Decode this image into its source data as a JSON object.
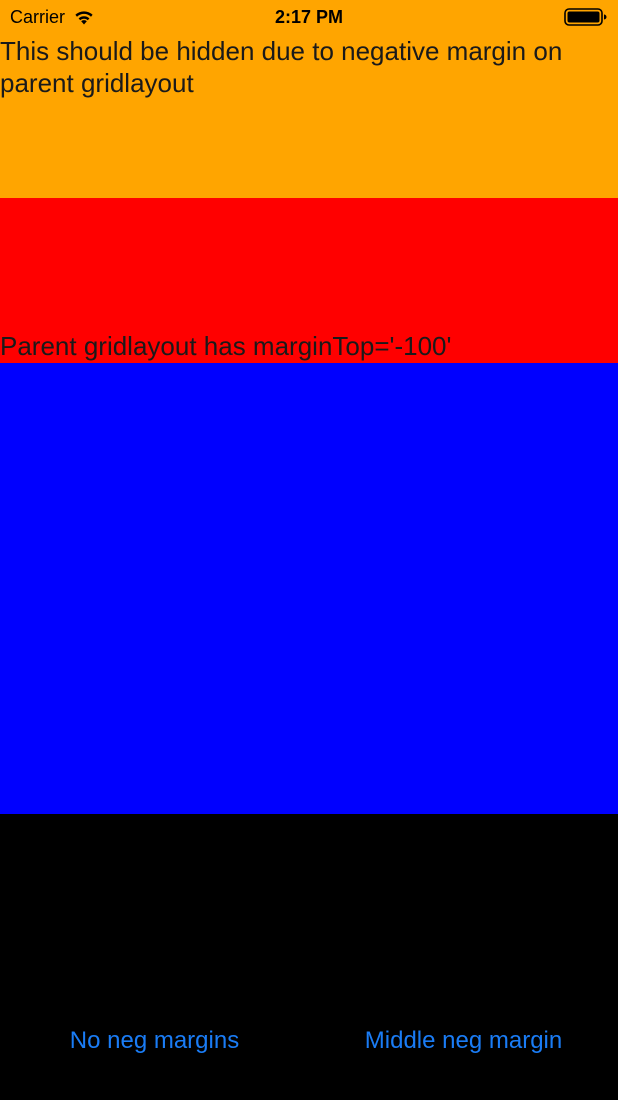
{
  "status_bar": {
    "carrier": "Carrier",
    "time": "2:17 PM",
    "icons": [
      "wifi-icon",
      "battery-icon"
    ]
  },
  "sections": {
    "orange": {
      "color": "#FFA500",
      "text": "This should be hidden due to negative margin on parent gridlayout"
    },
    "red": {
      "color": "#FF0000",
      "text": "Parent gridlayout has marginTop='-100'"
    },
    "blue": {
      "color": "#0000FF"
    },
    "black": {
      "color": "#000000"
    }
  },
  "buttons": {
    "no_neg_margins": "No neg margins",
    "middle_neg_margin": "Middle neg margin",
    "color": "#1A7CF5"
  }
}
